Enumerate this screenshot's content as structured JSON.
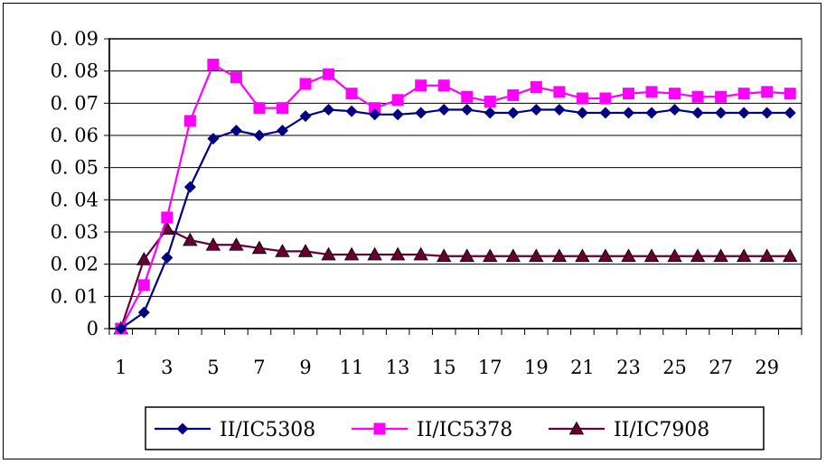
{
  "chart_data": {
    "type": "line",
    "title": "",
    "xlabel": "",
    "ylabel": "",
    "x": [
      1,
      2,
      3,
      4,
      5,
      6,
      7,
      8,
      9,
      10,
      11,
      12,
      13,
      14,
      15,
      16,
      17,
      18,
      19,
      20,
      21,
      22,
      23,
      24,
      25,
      26,
      27,
      28,
      29,
      30
    ],
    "x_tick_labels": [
      "1",
      "3",
      "5",
      "7",
      "9",
      "11",
      "13",
      "15",
      "17",
      "19",
      "21",
      "23",
      "25",
      "27",
      "29"
    ],
    "y_tick_labels": [
      "0",
      "0. 01",
      "0. 02",
      "0. 03",
      "0. 04",
      "0. 05",
      "0. 06",
      "0. 07",
      "0. 08",
      "0. 09"
    ],
    "ylim": [
      0,
      0.09
    ],
    "grid": "horizontal",
    "legend_position": "bottom",
    "series": [
      {
        "name": "II/IC5308",
        "color": "#000080",
        "marker": "diamond",
        "values": [
          0,
          0.005,
          0.022,
          0.044,
          0.059,
          0.0615,
          0.06,
          0.0615,
          0.066,
          0.068,
          0.0675,
          0.0665,
          0.0665,
          0.067,
          0.068,
          0.068,
          0.067,
          0.067,
          0.068,
          0.068,
          0.067,
          0.067,
          0.067,
          0.067,
          0.068,
          0.067,
          0.067,
          0.067,
          0.067,
          0.067
        ]
      },
      {
        "name": "II/IC5378",
        "color": "#ff00ff",
        "marker": "square",
        "values": [
          0,
          0.0135,
          0.0345,
          0.0645,
          0.082,
          0.078,
          0.0685,
          0.0685,
          0.076,
          0.079,
          0.073,
          0.0685,
          0.071,
          0.0755,
          0.0755,
          0.072,
          0.0705,
          0.0725,
          0.075,
          0.0735,
          0.0715,
          0.0715,
          0.073,
          0.0735,
          0.073,
          0.072,
          0.072,
          0.073,
          0.0735,
          0.073
        ]
      },
      {
        "name": "II/IC7908",
        "color": "#660033",
        "marker": "triangle",
        "values": [
          0,
          0.0215,
          0.031,
          0.0275,
          0.026,
          0.026,
          0.025,
          0.024,
          0.024,
          0.023,
          0.023,
          0.023,
          0.023,
          0.023,
          0.0225,
          0.0225,
          0.0225,
          0.0225,
          0.0225,
          0.0225,
          0.0225,
          0.0225,
          0.0225,
          0.0225,
          0.0225,
          0.0225,
          0.0225,
          0.0225,
          0.0225,
          0.0225
        ]
      }
    ]
  }
}
